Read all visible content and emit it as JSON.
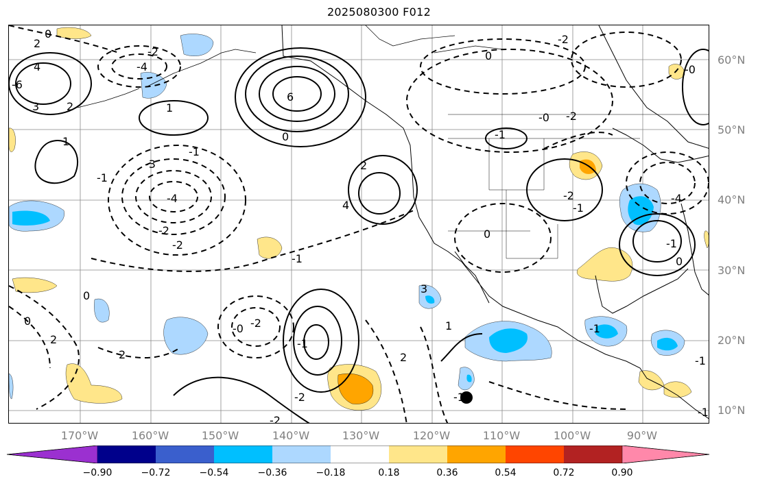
{
  "title": "2025080300 F012",
  "lat_labels": [
    "60°N",
    "50°N",
    "40°N",
    "30°N",
    "20°N",
    "10°N"
  ],
  "lon_labels": [
    "170°W",
    "160°W",
    "150°W",
    "140°W",
    "130°W",
    "120°W",
    "110°W",
    "100°W",
    "90°W"
  ],
  "colorbar": {
    "colors": [
      "#9b30d0",
      "#00008b",
      "#3a5fcd",
      "#00bfff",
      "#add8ff",
      "#ffffff",
      "#ffe68a",
      "#ffa500",
      "#ff4500",
      "#b22222",
      "#ff88aa"
    ],
    "ticks": [
      "−0.90",
      "−0.72",
      "−0.54",
      "−0.36",
      "−0.18",
      "0.18",
      "0.36",
      "0.54",
      "0.72",
      "0.90"
    ]
  },
  "contour_labels": [
    "0",
    "2",
    "4",
    "3",
    "2",
    "1",
    "6",
    "-2",
    "-4",
    "-6",
    "1",
    "2",
    "4",
    "0",
    "-1",
    "-1",
    "-3",
    "-4",
    "-2",
    "-2",
    "-1",
    "0",
    "0",
    "2",
    "2",
    "-2",
    "-0",
    "-1",
    "-2",
    "-2",
    "2",
    "3",
    "1",
    "-1",
    "0",
    "-1",
    "-2",
    "-1",
    "-0",
    "-2",
    "-2",
    "0",
    "-1",
    "-4",
    "-1",
    "0",
    "-1",
    "-0",
    "-1",
    "0",
    "2",
    "1",
    "0",
    "-1",
    "-2",
    "-0",
    "-6",
    "-0"
  ],
  "markers": [
    {
      "name": "storm-marker",
      "filled": true
    }
  ]
}
